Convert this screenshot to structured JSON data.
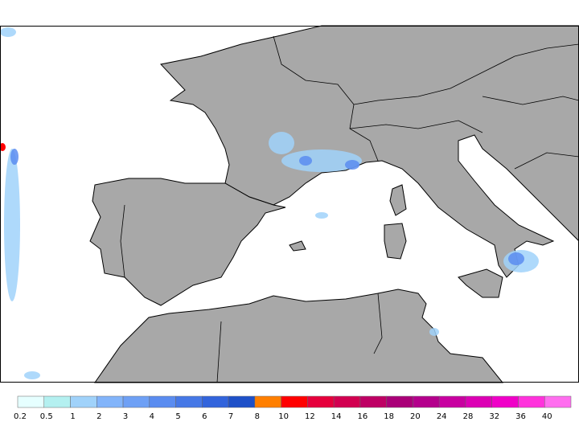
{
  "legend": {
    "items": [
      {
        "label": "0.2",
        "color": "#e6ffff"
      },
      {
        "label": "0.5",
        "color": "#b4f0f0"
      },
      {
        "label": "1",
        "color": "#a0d2fa"
      },
      {
        "label": "2",
        "color": "#82b4fa"
      },
      {
        "label": "3",
        "color": "#6ea0f5"
      },
      {
        "label": "4",
        "color": "#5a8cf0"
      },
      {
        "label": "5",
        "color": "#4678e6"
      },
      {
        "label": "6",
        "color": "#3264dc"
      },
      {
        "label": "7",
        "color": "#1e50c8"
      },
      {
        "label": "8",
        "color": "#ff7f00"
      },
      {
        "label": "10",
        "color": "#ff0000"
      },
      {
        "label": "12",
        "color": "#e6003c"
      },
      {
        "label": "14",
        "color": "#d20050"
      },
      {
        "label": "16",
        "color": "#be0064"
      },
      {
        "label": "18",
        "color": "#aa0078"
      },
      {
        "label": "20",
        "color": "#b4008c"
      },
      {
        "label": "24",
        "color": "#c800a0"
      },
      {
        "label": "28",
        "color": "#dc00b4"
      },
      {
        "label": "32",
        "color": "#f000c8"
      },
      {
        "label": "36",
        "color": "#ff32dc"
      },
      {
        "label": "40",
        "color": "#ff6eef"
      }
    ]
  }
}
